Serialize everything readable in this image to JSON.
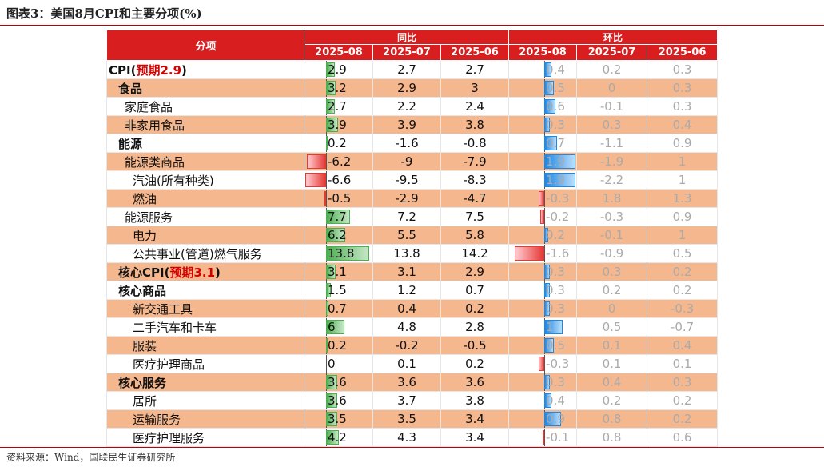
{
  "title": "图表3：美国8月CPI和主要分项(%)",
  "footer": "资料来源：Wind，国联民生证券研究所",
  "header": {
    "label": "分项",
    "yoy_group": "同比",
    "mom_group": "环比",
    "months": [
      "2025-08",
      "2025-07",
      "2025-06"
    ]
  },
  "rows": [
    {
      "name": "CPI(",
      "highlight": "预期2.9",
      "tail": ")",
      "level": 0,
      "yoy": [
        "2.9",
        "2.7",
        "2.7"
      ],
      "mom": [
        "0.4",
        "0.2",
        "0.3"
      ]
    },
    {
      "name": "食品",
      "level": 1,
      "yoy": [
        "3.2",
        "2.9",
        "3"
      ],
      "mom": [
        "0.5",
        "0",
        "0.3"
      ]
    },
    {
      "name": "家庭食品",
      "level": 2,
      "yoy": [
        "2.7",
        "2.2",
        "2.4"
      ],
      "mom": [
        "0.6",
        "-0.1",
        "0.3"
      ]
    },
    {
      "name": "非家用食品",
      "level": 2,
      "yoy": [
        "3.9",
        "3.9",
        "3.8"
      ],
      "mom": [
        "0.3",
        "0.3",
        "0.4"
      ]
    },
    {
      "name": "能源",
      "level": 1,
      "yoy": [
        "0.2",
        "-1.6",
        "-0.8"
      ],
      "mom": [
        "0.7",
        "-1.1",
        "0.9"
      ]
    },
    {
      "name": "能源类商品",
      "level": 2,
      "yoy": [
        "-6.2",
        "-9",
        "-7.9"
      ],
      "mom": [
        "1.9",
        "-1.9",
        "1"
      ]
    },
    {
      "name": "汽油(所有种类)",
      "level": 3,
      "yoy": [
        "-6.6",
        "-9.5",
        "-8.3"
      ],
      "mom": [
        "1.9",
        "-2.2",
        "1"
      ]
    },
    {
      "name": "燃油",
      "level": 3,
      "yoy": [
        "-0.5",
        "-2.9",
        "-4.7"
      ],
      "mom": [
        "-0.3",
        "1.8",
        "1.3"
      ]
    },
    {
      "name": "能源服务",
      "level": 2,
      "yoy": [
        "7.7",
        "7.2",
        "7.5"
      ],
      "mom": [
        "-0.2",
        "-0.3",
        "0.9"
      ]
    },
    {
      "name": "电力",
      "level": 3,
      "yoy": [
        "6.2",
        "5.5",
        "5.8"
      ],
      "mom": [
        "0.2",
        "-0.1",
        "1"
      ]
    },
    {
      "name": "公共事业(管道)燃气服务",
      "level": 3,
      "yoy": [
        "13.8",
        "13.8",
        "14.2"
      ],
      "mom": [
        "-1.6",
        "-0.9",
        "0.5"
      ]
    },
    {
      "name": "核心CPI(",
      "highlight": "预期3.1",
      "tail": ")",
      "level": 1,
      "yoy": [
        "3.1",
        "3.1",
        "2.9"
      ],
      "mom": [
        "0.3",
        "0.3",
        "0.2"
      ]
    },
    {
      "name": "核心商品",
      "level": 1,
      "yoy": [
        "1.5",
        "1.2",
        "0.7"
      ],
      "mom": [
        "0.3",
        "0.2",
        "0.2"
      ]
    },
    {
      "name": "新交通工具",
      "level": 3,
      "yoy": [
        "0.7",
        "0.4",
        "0.2"
      ],
      "mom": [
        "0.3",
        "0",
        "-0.3"
      ]
    },
    {
      "name": "二手汽车和卡车",
      "level": 3,
      "yoy": [
        "6",
        "4.8",
        "2.8"
      ],
      "mom": [
        "1",
        "0.5",
        "-0.7"
      ]
    },
    {
      "name": "服装",
      "level": 3,
      "yoy": [
        "0.2",
        "-0.2",
        "-0.5"
      ],
      "mom": [
        "0.5",
        "0.1",
        "0.4"
      ]
    },
    {
      "name": "医疗护理商品",
      "level": 3,
      "yoy": [
        "0",
        "0.1",
        "0.2"
      ],
      "mom": [
        "-0.3",
        "0.1",
        "0.1"
      ]
    },
    {
      "name": "核心服务",
      "level": 1,
      "yoy": [
        "3.6",
        "3.6",
        "3.6"
      ],
      "mom": [
        "0.3",
        "0.4",
        "0.3"
      ]
    },
    {
      "name": "居所",
      "level": 3,
      "yoy": [
        "3.6",
        "3.7",
        "3.8"
      ],
      "mom": [
        "0.4",
        "0.2",
        "0.2"
      ]
    },
    {
      "name": "运输服务",
      "level": 3,
      "yoy": [
        "3.5",
        "3.5",
        "3.4"
      ],
      "mom": [
        "0.9",
        "0.8",
        "0.2"
      ]
    },
    {
      "name": "医疗护理服务",
      "level": 3,
      "yoy": [
        "4.2",
        "4.3",
        "3.4"
      ],
      "mom": [
        "-0.1",
        "0.8",
        "0.6"
      ]
    }
  ]
}
